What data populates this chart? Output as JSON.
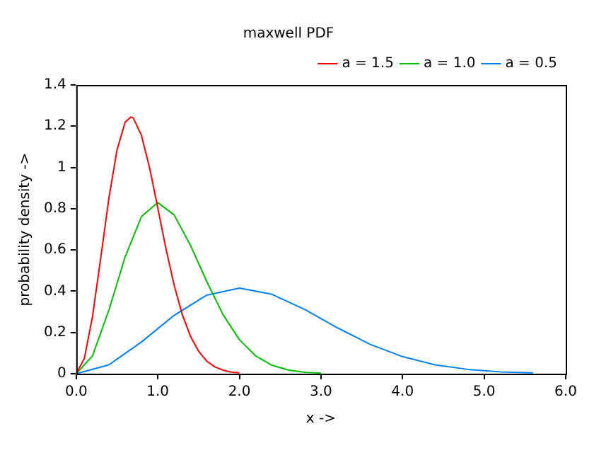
{
  "chart_data": {
    "type": "line",
    "title": "maxwell PDF",
    "xlabel": "x ->",
    "ylabel": "probability density ->",
    "xlim": [
      0,
      6
    ],
    "xticks": [
      {
        "value": 0,
        "label": "0.0"
      },
      {
        "value": 1,
        "label": "1.0"
      },
      {
        "value": 2,
        "label": "2.0"
      },
      {
        "value": 3,
        "label": "3.0"
      },
      {
        "value": 4,
        "label": "4.0"
      },
      {
        "value": 5,
        "label": "5.0"
      },
      {
        "value": 6,
        "label": "6.0"
      }
    ],
    "ylim": [
      0,
      1.4
    ],
    "yticks": [
      0,
      0.2,
      0.4,
      0.6,
      0.8,
      1,
      1.2,
      1.4
    ],
    "grid": false,
    "legend": "top right",
    "marker": "none",
    "line_style": "solid",
    "series": [
      {
        "name": "a = 1.5",
        "color": "#ff0000",
        "x": [
          0,
          0.1,
          0.2,
          0.3,
          0.4,
          0.5,
          0.6,
          0.67,
          0.7,
          0.8,
          0.9,
          1.0,
          1.1,
          1.2,
          1.3,
          1.4,
          1.5,
          1.6,
          1.7,
          1.8,
          1.9,
          2.0
        ],
        "values": [
          0,
          0.075,
          0.278,
          0.56,
          0.85,
          1.085,
          1.22,
          1.245,
          1.239,
          1.155,
          0.997,
          0.803,
          0.606,
          0.43,
          0.287,
          0.182,
          0.109,
          0.061,
          0.033,
          0.017,
          0.008,
          0.004
        ]
      },
      {
        "name": "a = 1.0",
        "color": "#00c000",
        "x": [
          0,
          0.2,
          0.4,
          0.6,
          0.8,
          1.0,
          1.2,
          1.4,
          1.6,
          1.8,
          2.0,
          2.2,
          2.4,
          2.6,
          2.8,
          3.0
        ],
        "values": [
          0,
          0.087,
          0.308,
          0.567,
          0.762,
          0.83,
          0.77,
          0.623,
          0.447,
          0.286,
          0.165,
          0.086,
          0.041,
          0.018,
          0.007,
          0.003
        ]
      },
      {
        "name": "a = 0.5",
        "color": "#0080ff",
        "x": [
          0,
          0.4,
          0.8,
          1.2,
          1.6,
          2.0,
          2.4,
          2.8,
          3.2,
          3.6,
          4.0,
          4.4,
          4.8,
          5.2,
          5.6
        ],
        "values": [
          0,
          0.043,
          0.154,
          0.283,
          0.381,
          0.415,
          0.385,
          0.312,
          0.223,
          0.143,
          0.083,
          0.043,
          0.021,
          0.009,
          0.004
        ]
      }
    ]
  }
}
